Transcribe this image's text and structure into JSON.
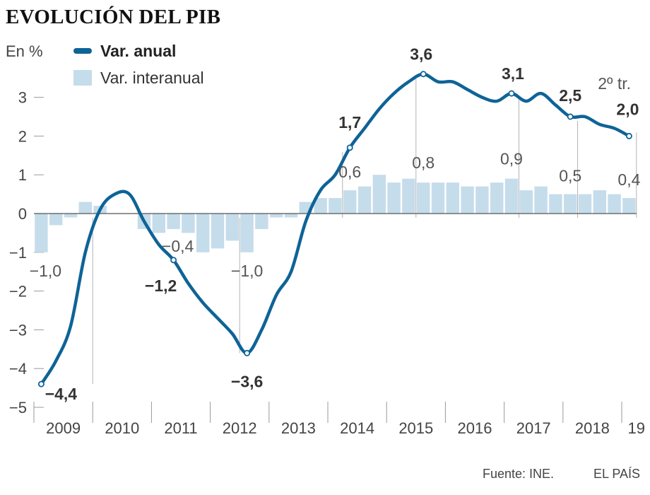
{
  "title": "EVOLUCIÓN DEL PIB",
  "unit_label": "En %",
  "legend": {
    "annual": "Var. anual",
    "interannual": "Var. interanual"
  },
  "last_period_label": "2º tr.",
  "source": "Fuente: INE.",
  "brand": "EL PAÍS",
  "colors": {
    "line": "#0e6397",
    "bar": "#c5dceb",
    "axis": "#999999"
  },
  "chart_data": {
    "type": "bar+line",
    "ylabel": "En %",
    "ylim": [
      -5,
      3.6
    ],
    "yticks": [
      3,
      2,
      1,
      0,
      -1,
      -2,
      -3,
      -4,
      -5
    ],
    "year_labels": [
      "2009",
      "2010",
      "2011",
      "2012",
      "2013",
      "2014",
      "2015",
      "2016",
      "2017",
      "2018",
      "19"
    ],
    "quarters_per_year": [
      4,
      4,
      4,
      4,
      4,
      4,
      4,
      4,
      4,
      4,
      2
    ],
    "series": [
      {
        "name": "Var. anual",
        "kind": "line",
        "values": [
          -4.4,
          -3.8,
          -2.9,
          -1.0,
          0.1,
          0.5,
          0.5,
          -0.2,
          -0.8,
          -1.2,
          -1.8,
          -2.3,
          -2.7,
          -3.1,
          -3.6,
          -3.0,
          -2.1,
          -1.5,
          -0.2,
          0.6,
          1.0,
          1.7,
          2.2,
          2.7,
          3.1,
          3.4,
          3.6,
          3.4,
          3.4,
          3.2,
          3.0,
          2.9,
          3.1,
          2.9,
          3.1,
          2.8,
          2.5,
          2.5,
          2.3,
          2.2,
          2.0
        ]
      },
      {
        "name": "Var. interanual",
        "kind": "bar",
        "values": [
          -1.0,
          -0.3,
          -0.1,
          0.3,
          0.2,
          0.0,
          0.0,
          -0.4,
          -0.5,
          -0.4,
          -0.5,
          -1.0,
          -0.9,
          -0.7,
          -1.0,
          -0.4,
          -0.1,
          -0.1,
          0.3,
          0.4,
          0.4,
          0.6,
          0.7,
          1.0,
          0.8,
          0.9,
          0.8,
          0.8,
          0.8,
          0.7,
          0.7,
          0.8,
          0.9,
          0.6,
          0.7,
          0.5,
          0.5,
          0.5,
          0.6,
          0.5,
          0.4
        ]
      }
    ],
    "annotations": [
      {
        "series": 0,
        "index": 0,
        "text": "−4,4",
        "style": "dark",
        "dx": 28,
        "dy": 22,
        "marker": true
      },
      {
        "series": 0,
        "index": 9,
        "text": "−1,2",
        "style": "dark",
        "dx": -18,
        "dy": 44,
        "marker": true,
        "leader": true
      },
      {
        "series": 0,
        "index": 14,
        "text": "−3,6",
        "style": "dark",
        "dx": 0,
        "dy": 48,
        "marker": true
      },
      {
        "series": 0,
        "index": 21,
        "text": "1,7",
        "style": "dark",
        "dx": 0,
        "dy": -28,
        "marker": true
      },
      {
        "series": 0,
        "index": 26,
        "text": "3,6",
        "style": "dark",
        "dx": -3,
        "dy": -20,
        "marker": true
      },
      {
        "series": 0,
        "index": 32,
        "text": "3,1",
        "style": "dark",
        "dx": 2,
        "dy": -20,
        "marker": true
      },
      {
        "series": 0,
        "index": 36,
        "text": "2,5",
        "style": "dark",
        "dx": 0,
        "dy": -22,
        "marker": true
      },
      {
        "series": 0,
        "index": 40,
        "text": "2,0",
        "style": "dark",
        "dx": -2,
        "dy": -30,
        "marker": true
      },
      {
        "series": 1,
        "index": 0,
        "text": "−1,0",
        "style": "light",
        "dx": 6,
        "dy": 34
      },
      {
        "series": 1,
        "index": 9,
        "text": "−0,4",
        "style": "light",
        "dx": 6,
        "dy": 32
      },
      {
        "series": 1,
        "index": 14,
        "text": "−1,0",
        "style": "light",
        "dx": 0,
        "dy": 34
      },
      {
        "series": 1,
        "index": 21,
        "text": "0,6",
        "style": "light",
        "dx": 0,
        "dy": -18
      },
      {
        "series": 1,
        "index": 26,
        "text": "0,8",
        "style": "light",
        "dx": 0,
        "dy": -20
      },
      {
        "series": 1,
        "index": 32,
        "text": "0,9",
        "style": "light",
        "dx": 0,
        "dy": -20
      },
      {
        "series": 1,
        "index": 36,
        "text": "0,5",
        "style": "light",
        "dx": 0,
        "dy": -18
      },
      {
        "series": 1,
        "index": 40,
        "text": "0,4",
        "style": "light",
        "dx": 0,
        "dy": -18
      }
    ]
  }
}
